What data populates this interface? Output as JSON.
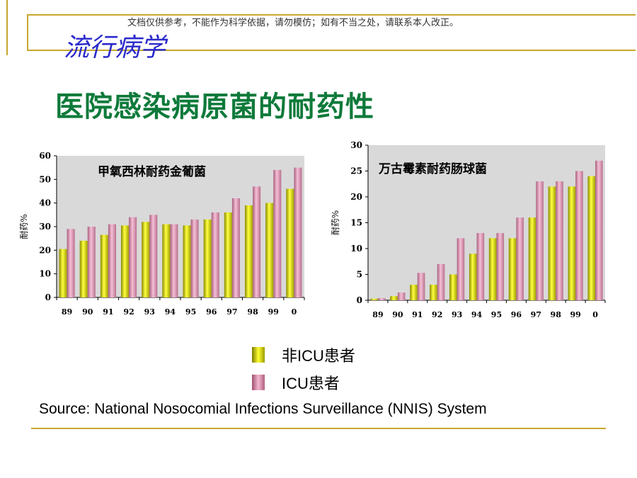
{
  "header": {
    "disclaimer": "文档仅供参考，不能作为科学依据，请勿模仿；如有不当之处，请联系本人改正。",
    "subject": "流行病学",
    "title": "医院感染病原菌的耐药性"
  },
  "colors": {
    "non_icu": "#e6e600",
    "icu": "#e8a0c0",
    "gold_rule": "#c8a72c",
    "title_green": "#0e7a3a",
    "subject_blue": "#2a2acc"
  },
  "legend": {
    "non_icu_label": "非ICU患者",
    "icu_label": "ICU患者"
  },
  "source": "Source: National Nosocomial Infections Surveillance (NNIS) System",
  "chart_data": [
    {
      "type": "bar",
      "title": "甲氧西林耐药金葡菌",
      "ylabel": "耐药%",
      "xlabel": "",
      "categories": [
        "89",
        "90",
        "91",
        "92",
        "93",
        "94",
        "95",
        "96",
        "97",
        "98",
        "99",
        "0"
      ],
      "ylim": [
        0,
        60
      ],
      "yticks": [
        0,
        10,
        20,
        30,
        40,
        50,
        60
      ],
      "grid": false,
      "series": [
        {
          "name": "非ICU患者",
          "values": [
            20.5,
            24,
            26.5,
            30.5,
            32,
            31,
            30.5,
            33,
            36,
            39,
            40,
            46
          ]
        },
        {
          "name": "ICU患者",
          "values": [
            29,
            30,
            31,
            34,
            35,
            31,
            33,
            36,
            42,
            47,
            54,
            55
          ]
        }
      ]
    },
    {
      "type": "bar",
      "title": "万古霉素耐药肠球菌",
      "ylabel": "耐药%",
      "xlabel": "",
      "categories": [
        "89",
        "90",
        "91",
        "92",
        "93",
        "94",
        "95",
        "96",
        "97",
        "98",
        "99",
        "0"
      ],
      "ylim": [
        0,
        30
      ],
      "yticks": [
        0,
        5,
        10,
        15,
        20,
        25,
        30
      ],
      "grid": false,
      "series": [
        {
          "name": "非ICU患者",
          "values": [
            0.3,
            0.8,
            3,
            3,
            5,
            9,
            12,
            12,
            16,
            22,
            22,
            24
          ]
        },
        {
          "name": "ICU患者",
          "values": [
            0.4,
            1.5,
            5.3,
            7,
            12,
            13,
            13,
            16,
            23,
            23,
            25,
            27
          ]
        }
      ]
    }
  ]
}
